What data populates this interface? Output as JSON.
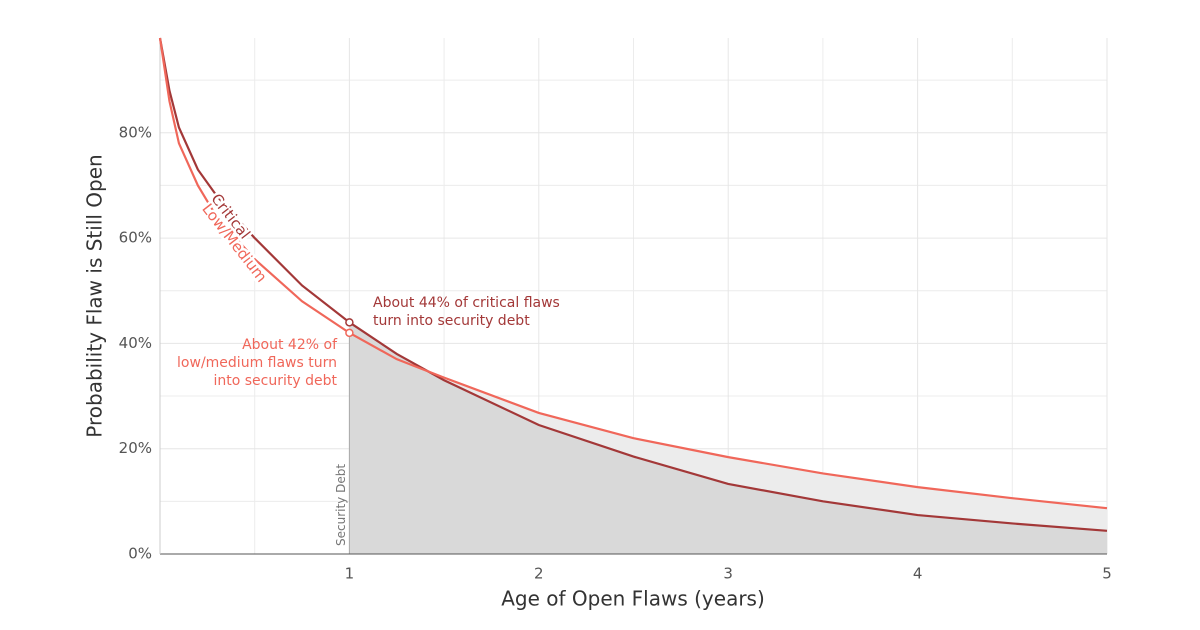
{
  "chart_data": {
    "type": "line",
    "x_label": "Age of Open Flaws (years)",
    "y_label": "Probability Flaw is Still Open",
    "x": [
      0,
      0.05,
      0.1,
      0.2,
      0.3,
      0.5,
      0.75,
      1,
      1.25,
      1.5,
      2,
      2.5,
      3,
      3.5,
      4,
      4.5,
      5
    ],
    "series": [
      {
        "name": "Critical",
        "color": "#a33838",
        "values": [
          98,
          88,
          81,
          73,
          68,
          60,
          51,
          44,
          38,
          33,
          24.5,
          18.5,
          13.3,
          10,
          7.4,
          5.8,
          4.4
        ]
      },
      {
        "name": "Low/Medium",
        "color": "#f0675a",
        "values": [
          98,
          86,
          78,
          70,
          64,
          56,
          48,
          42,
          37,
          33.5,
          26.8,
          22,
          18.4,
          15.3,
          12.7,
          10.6,
          8.7
        ]
      }
    ],
    "xlim": [
      0,
      5
    ],
    "ylim": [
      0,
      98
    ],
    "xticks": [
      1,
      2,
      3,
      4,
      5
    ],
    "yticks": [
      {
        "value": 0,
        "label": "0%"
      },
      {
        "value": 20,
        "label": "20%"
      },
      {
        "value": 40,
        "label": "40%"
      },
      {
        "value": 60,
        "label": "60%"
      },
      {
        "value": 80,
        "label": "80%"
      }
    ],
    "x_minor_ticks": [
      0.5,
      1.5,
      2.5,
      3.5,
      4.5
    ],
    "y_minor_ticks": [
      10,
      30,
      50,
      70,
      90
    ],
    "grid": true,
    "security_debt": {
      "label": "Security Debt",
      "x": 1
    },
    "annotations": [
      {
        "lines": [
          "About 44% of critical flaws",
          "turn into security debt"
        ],
        "color": "#a33838"
      },
      {
        "lines": [
          "About 42% of",
          "low/medium flaws turn",
          "into security debt"
        ],
        "color": "#f0675a"
      }
    ]
  }
}
